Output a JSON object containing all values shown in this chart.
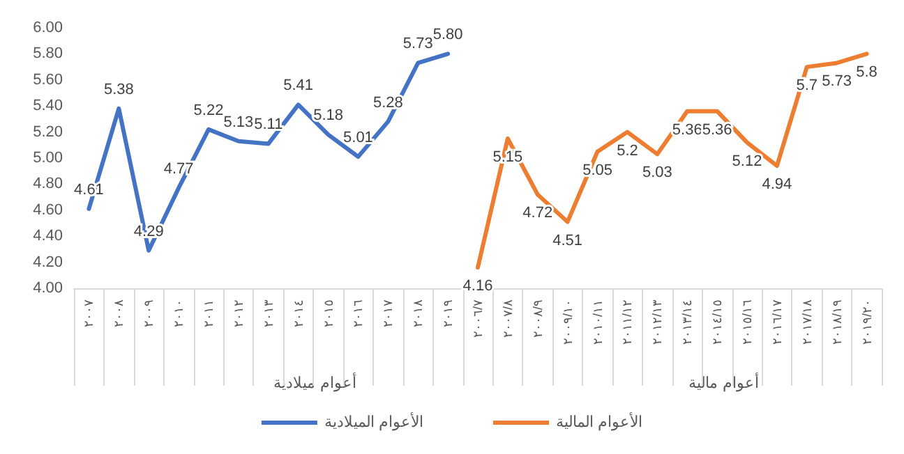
{
  "chart_data": {
    "type": "line",
    "categories": [
      "٢٠٠٧",
      "٢٠٠٨",
      "٢٠٠٩",
      "٢٠١٠",
      "٢٠١١",
      "٢٠١٢",
      "٢٠١٣",
      "٢٠١٤",
      "٢٠١٥",
      "٢٠١٦",
      "٢٠١٧",
      "٢٠١٨",
      "٢٠١٩",
      "٢٠٠٦/٧",
      "٢٠٠٧/٨",
      "٢٠٠٨/٩",
      "٢٠٠٩/١٠",
      "٢٠١٠/١١",
      "٢٠١١/١٢",
      "٢٠١٢/١٣",
      "٢٠١٣/١٤",
      "٢٠١٤/١٥",
      "٢٠١٥/١٦",
      "٢٠١٦/١٧",
      "٢٠١٧/١٨",
      "٢٠١٨/١٩",
      "٢٠١٩/٢٠"
    ],
    "series": [
      {
        "name": "الأعوام الميلادية",
        "color": "#4472c4",
        "values": [
          4.61,
          5.38,
          4.29,
          4.77,
          5.22,
          5.13,
          5.11,
          5.41,
          5.18,
          5.01,
          5.28,
          5.73,
          5.8,
          null,
          null,
          null,
          null,
          null,
          null,
          null,
          null,
          null,
          null,
          null,
          null,
          null,
          null
        ],
        "value_labels": [
          "4.61",
          "5.38",
          "4.29",
          "4.77",
          "5.22",
          "5.13",
          "5.11",
          "5.41",
          "5.18",
          "5.01",
          "5.28",
          "5.73",
          "5.80",
          null,
          null,
          null,
          null,
          null,
          null,
          null,
          null,
          null,
          null,
          null,
          null,
          null,
          null
        ]
      },
      {
        "name": "الأعوام المالية",
        "color": "#ed7d31",
        "values": [
          null,
          null,
          null,
          null,
          null,
          null,
          null,
          null,
          null,
          null,
          null,
          null,
          null,
          4.16,
          5.15,
          4.72,
          4.51,
          5.05,
          5.2,
          5.03,
          5.36,
          5.36,
          5.12,
          4.94,
          5.7,
          5.73,
          5.8
        ],
        "value_labels": [
          null,
          null,
          null,
          null,
          null,
          null,
          null,
          null,
          null,
          null,
          null,
          null,
          null,
          "4.16",
          "5.15",
          "4.72",
          "4.51",
          "5.05",
          "5.2",
          "5.03",
          "5.36",
          "5.36",
          "5.12",
          "4.94",
          "5.7",
          "5.73",
          "5.8"
        ]
      }
    ],
    "annotations": [
      "أعوام ميلادية",
      "أعوام مالية"
    ],
    "ylim": [
      4,
      6
    ],
    "yticks": [
      {
        "value": 4,
        "label": "4.00"
      },
      {
        "value": 4.2,
        "label": "4.20"
      },
      {
        "value": 4.4,
        "label": "4.40"
      },
      {
        "value": 4.6,
        "label": "4.60"
      },
      {
        "value": 4.8,
        "label": "4.80"
      },
      {
        "value": 5,
        "label": "5.00"
      },
      {
        "value": 5.2,
        "label": "5.20"
      },
      {
        "value": 5.4,
        "label": "5.40"
      },
      {
        "value": 5.6,
        "label": "5.60"
      },
      {
        "value": 5.8,
        "label": "5.80"
      },
      {
        "value": 6,
        "label": "6.00"
      }
    ],
    "grid": false,
    "legend": "bottom",
    "marker": "none",
    "line_style": "solid"
  }
}
